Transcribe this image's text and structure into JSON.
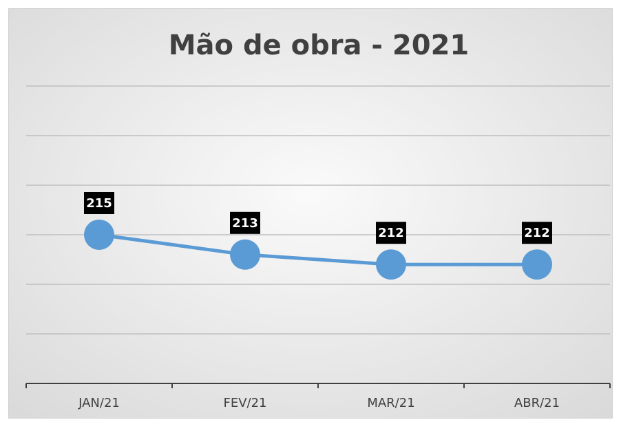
{
  "chart_data": {
    "type": "line",
    "title": "Mão de obra - 2021",
    "categories": [
      "JAN/21",
      "FEV/21",
      "MAR/21",
      "ABR/21"
    ],
    "series": [
      {
        "name": "Mão de obra",
        "color": "#5b9bd5",
        "values": [
          215,
          213,
          212,
          212
        ]
      }
    ],
    "ylim": [
      200,
      230
    ],
    "yticks": [
      200,
      205,
      210,
      215,
      220,
      225,
      230
    ],
    "grid": true
  }
}
